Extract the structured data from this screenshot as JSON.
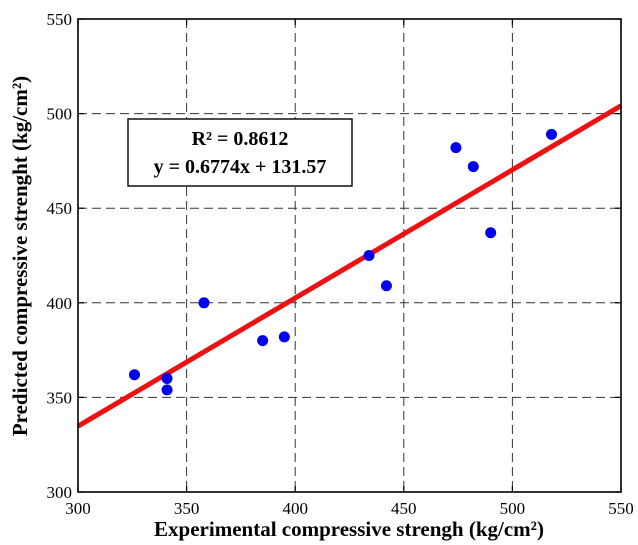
{
  "chart_data": {
    "type": "scatter",
    "xlabel": "Experimental compressive strengh (kg/cm²)",
    "ylabel": "Predicted compressive strenght (kg/cm²)",
    "xlim": [
      300,
      550
    ],
    "ylim": [
      300,
      550
    ],
    "xticks": [
      300,
      350,
      400,
      450,
      500,
      550
    ],
    "yticks": [
      300,
      350,
      400,
      450,
      500,
      550
    ],
    "grid": true,
    "points": [
      {
        "x": 326,
        "y": 362
      },
      {
        "x": 341,
        "y": 360
      },
      {
        "x": 341,
        "y": 354
      },
      {
        "x": 358,
        "y": 400
      },
      {
        "x": 385,
        "y": 380
      },
      {
        "x": 395,
        "y": 382
      },
      {
        "x": 434,
        "y": 425
      },
      {
        "x": 442,
        "y": 409
      },
      {
        "x": 474,
        "y": 482
      },
      {
        "x": 482,
        "y": 472
      },
      {
        "x": 490,
        "y": 437
      },
      {
        "x": 518,
        "y": 489
      }
    ],
    "fit_line": {
      "slope": 0.6774,
      "intercept": 131.57
    },
    "annotation": {
      "r2_text": "R² = 0.8612",
      "equation_text": "y = 0.6774x + 131.57"
    },
    "colors": {
      "points": "#0000ee",
      "fit_line": "#ee1111",
      "grid": "#333333"
    }
  }
}
